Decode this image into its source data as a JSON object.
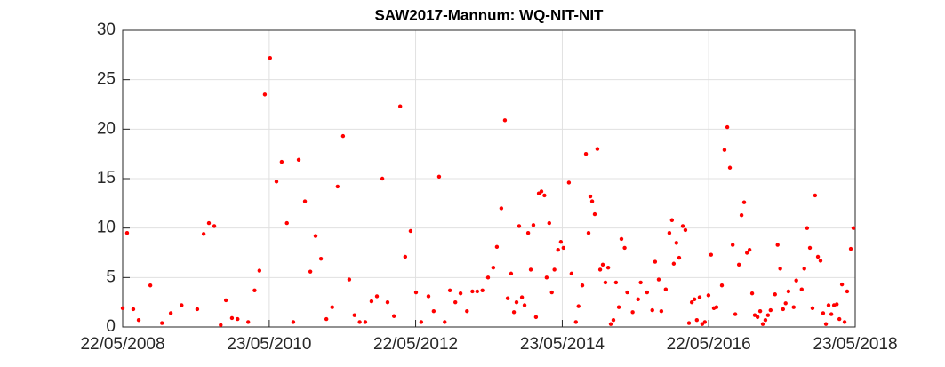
{
  "chart_data": {
    "type": "scatter",
    "title": "SAW2017-Mannum: WQ-NIT-NIT",
    "color": "#ff0000",
    "grid": true,
    "xlim": [
      "2008-05-22",
      "2018-05-23"
    ],
    "xticks": [
      {
        "value": "2008-05-22",
        "label": "22/05/2008"
      },
      {
        "value": "2010-05-23",
        "label": "23/05/2010"
      },
      {
        "value": "2012-05-22",
        "label": "22/05/2012"
      },
      {
        "value": "2014-05-23",
        "label": "23/05/2014"
      },
      {
        "value": "2016-05-22",
        "label": "22/05/2016"
      },
      {
        "value": "2018-05-23",
        "label": "23/05/2018"
      }
    ],
    "ylim": [
      0,
      30
    ],
    "yticks": [
      0,
      5,
      10,
      15,
      20,
      25,
      30
    ],
    "x": [
      "2008-05-22",
      "2008-06-13",
      "2008-07-14",
      "2008-08-10",
      "2008-10-07",
      "2008-12-04",
      "2009-01-17",
      "2009-03-12",
      "2009-05-29",
      "2009-06-30",
      "2009-07-26",
      "2009-08-22",
      "2009-09-23",
      "2009-10-19",
      "2009-11-18",
      "2009-12-16",
      "2010-02-07",
      "2010-03-11",
      "2010-04-04",
      "2010-05-01",
      "2010-05-27",
      "2010-06-28",
      "2010-07-24",
      "2010-08-19",
      "2010-09-20",
      "2010-10-17",
      "2010-11-17",
      "2010-12-14",
      "2011-01-09",
      "2011-02-05",
      "2011-03-04",
      "2011-04-02",
      "2011-04-29",
      "2011-05-26",
      "2011-06-26",
      "2011-07-22",
      "2011-08-17",
      "2011-09-14",
      "2011-10-15",
      "2011-11-11",
      "2011-12-08",
      "2012-01-03",
      "2012-02-04",
      "2012-03-06",
      "2012-03-31",
      "2012-04-27",
      "2012-05-24",
      "2012-06-19",
      "2012-07-25",
      "2012-08-20",
      "2012-09-16",
      "2012-10-14",
      "2012-11-09",
      "2012-12-06",
      "2013-01-01",
      "2013-02-02",
      "2013-03-01",
      "2013-03-25",
      "2013-04-20",
      "2013-05-18",
      "2013-06-13",
      "2013-07-01",
      "2013-07-23",
      "2013-08-10",
      "2013-08-24",
      "2013-09-10",
      "2013-09-24",
      "2013-10-07",
      "2013-10-20",
      "2013-11-03",
      "2013-11-16",
      "2013-12-04",
      "2013-12-17",
      "2013-12-30",
      "2014-01-12",
      "2014-01-26",
      "2014-02-08",
      "2014-02-23",
      "2014-03-06",
      "2014-03-19",
      "2014-04-01",
      "2014-04-14",
      "2014-05-02",
      "2014-05-16",
      "2014-05-29",
      "2014-06-25",
      "2014-07-08",
      "2014-07-30",
      "2014-08-12",
      "2014-08-31",
      "2014-09-18",
      "2014-10-01",
      "2014-10-10",
      "2014-10-19",
      "2014-11-01",
      "2014-11-14",
      "2014-11-28",
      "2014-12-11",
      "2014-12-24",
      "2015-01-07",
      "2015-01-20",
      "2015-02-02",
      "2015-02-15",
      "2015-03-01",
      "2015-03-14",
      "2015-03-30",
      "2015-04-12",
      "2015-05-09",
      "2015-06-05",
      "2015-06-18",
      "2015-07-20",
      "2015-08-15",
      "2015-08-29",
      "2015-09-16",
      "2015-09-29",
      "2015-10-21",
      "2015-11-08",
      "2015-11-21",
      "2015-11-30",
      "2015-12-13",
      "2015-12-27",
      "2016-01-14",
      "2016-01-27",
      "2016-02-14",
      "2016-02-28",
      "2016-03-12",
      "2016-03-24",
      "2016-04-07",
      "2016-04-20",
      "2016-05-03",
      "2016-05-21",
      "2016-06-03",
      "2016-06-17",
      "2016-06-30",
      "2016-07-27",
      "2016-08-09",
      "2016-08-23",
      "2016-09-05",
      "2016-09-19",
      "2016-10-02",
      "2016-10-20",
      "2016-11-02",
      "2016-11-15",
      "2016-11-29",
      "2016-12-12",
      "2016-12-25",
      "2017-01-07",
      "2017-01-21",
      "2017-02-03",
      "2017-02-16",
      "2017-03-01",
      "2017-03-14",
      "2017-03-27",
      "2017-04-18",
      "2017-05-01",
      "2017-05-14",
      "2017-05-28",
      "2017-06-10",
      "2017-06-24",
      "2017-07-20",
      "2017-08-02",
      "2017-08-29",
      "2017-09-11",
      "2017-09-25",
      "2017-10-09",
      "2017-10-22",
      "2017-11-04",
      "2017-11-18",
      "2017-12-01",
      "2017-12-14",
      "2017-12-28",
      "2018-01-10",
      "2018-01-24",
      "2018-02-06",
      "2018-02-20",
      "2018-03-05",
      "2018-03-18",
      "2018-03-31",
      "2018-04-13",
      "2018-05-01",
      "2018-05-14"
    ],
    "values": [
      1.9,
      9.5,
      1.8,
      0.7,
      4.2,
      0.4,
      1.4,
      2.2,
      1.8,
      9.4,
      10.5,
      10.2,
      0.2,
      2.7,
      0.9,
      0.8,
      0.5,
      3.7,
      5.7,
      23.5,
      27.2,
      14.7,
      16.7,
      10.5,
      0.5,
      16.9,
      12.7,
      5.6,
      9.2,
      6.9,
      0.8,
      2.0,
      14.2,
      19.3,
      4.8,
      1.2,
      0.5,
      0.5,
      2.6,
      3.1,
      15.0,
      2.5,
      1.1,
      22.3,
      7.1,
      9.7,
      3.5,
      0.5,
      3.1,
      1.6,
      15.2,
      0.5,
      3.7,
      2.5,
      3.4,
      1.6,
      3.6,
      3.6,
      3.7,
      5.0,
      6.0,
      8.1,
      12.0,
      20.9,
      2.9,
      5.4,
      1.5,
      2.5,
      10.2,
      3.0,
      2.2,
      9.5,
      5.8,
      10.3,
      1.0,
      13.5,
      13.7,
      13.3,
      5.0,
      10.5,
      3.5,
      5.8,
      7.8,
      8.6,
      8.0,
      14.6,
      5.4,
      0.5,
      2.1,
      4.2,
      17.5,
      9.5,
      13.2,
      12.7,
      11.4,
      18.0,
      5.8,
      6.3,
      4.5,
      6.0,
      0.3,
      0.7,
      4.5,
      2.0,
      8.9,
      8.0,
      3.5,
      1.5,
      2.8,
      4.5,
      3.5,
      1.7,
      6.6,
      4.8,
      1.6,
      3.8,
      9.5,
      10.8,
      6.4,
      8.5,
      7.0,
      10.2,
      9.8,
      0.4,
      2.5,
      2.8,
      0.7,
      3.0,
      0.3,
      0.5,
      3.2,
      7.3,
      1.9,
      2.0,
      4.2,
      17.9,
      20.2,
      16.1,
      8.3,
      1.3,
      6.3,
      11.3,
      12.6,
      7.5,
      7.8,
      3.4,
      1.2,
      1.0,
      1.6,
      0.3,
      0.7,
      1.2,
      1.7,
      3.3,
      8.3,
      5.9,
      1.8,
      2.4,
      3.6,
      2.0,
      4.7,
      3.8,
      5.9,
      10.0,
      8.0,
      1.9,
      13.3,
      7.1,
      6.7,
      1.4,
      0.3,
      2.2,
      1.3,
      2.2,
      2.3,
      0.8,
      4.3,
      0.5,
      3.6,
      7.9,
      10.0
    ]
  }
}
